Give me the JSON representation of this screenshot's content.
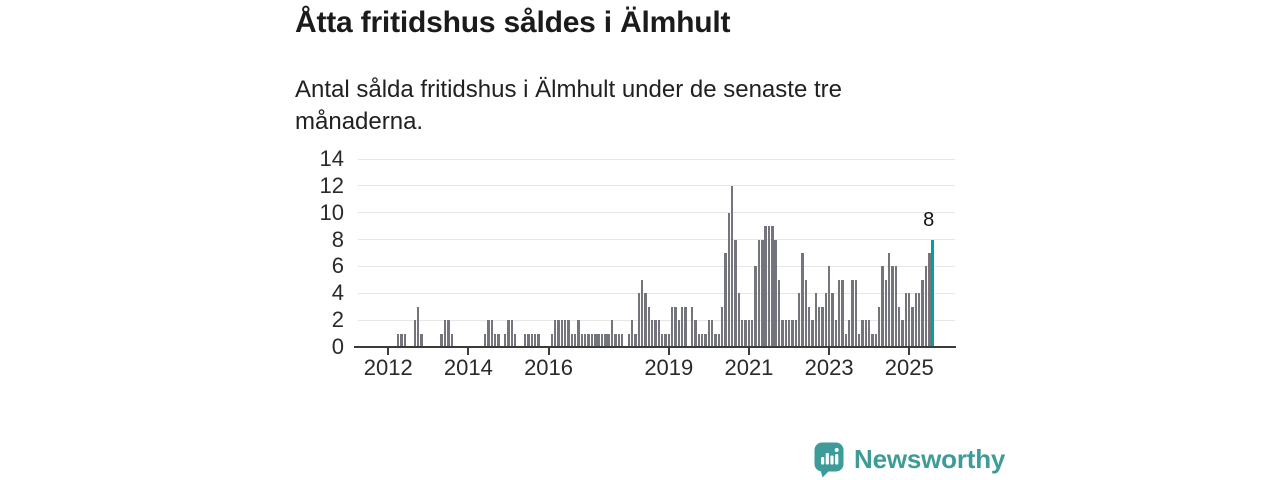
{
  "header": {
    "title": "Åtta fritidshus såldes i Älmhult",
    "subtitle": "Antal sålda fritidshus i Älmhult under de senaste tre månaderna."
  },
  "chart_data": {
    "type": "bar",
    "title": "Åtta fritidshus såldes i Älmhult",
    "xlabel": "",
    "ylabel": "",
    "start_month": "2011-07",
    "frequency": "monthly",
    "values": [
      0,
      0,
      0,
      0,
      0,
      0,
      0,
      0,
      0,
      1,
      1,
      1,
      0,
      0,
      2,
      3,
      1,
      0,
      0,
      0,
      0,
      0,
      1,
      2,
      2,
      1,
      0,
      0,
      0,
      0,
      0,
      0,
      0,
      0,
      0,
      1,
      2,
      2,
      1,
      1,
      0,
      1,
      2,
      2,
      1,
      0,
      0,
      1,
      1,
      1,
      1,
      1,
      0,
      0,
      0,
      1,
      2,
      2,
      2,
      2,
      2,
      1,
      1,
      2,
      1,
      1,
      1,
      1,
      1,
      1,
      1,
      1,
      1,
      2,
      1,
      1,
      1,
      0,
      1,
      2,
      1,
      4,
      5,
      4,
      3,
      2,
      2,
      2,
      1,
      1,
      1,
      3,
      3,
      2,
      3,
      3,
      0,
      3,
      2,
      1,
      1,
      1,
      2,
      2,
      1,
      1,
      3,
      7,
      10,
      12,
      8,
      4,
      2,
      2,
      2,
      2,
      6,
      8,
      8,
      9,
      9,
      9,
      8,
      5,
      2,
      2,
      2,
      2,
      2,
      4,
      7,
      5,
      3,
      2,
      4,
      3,
      3,
      4,
      6,
      4,
      2,
      5,
      5,
      1,
      2,
      5,
      5,
      1,
      2,
      2,
      2,
      1,
      1,
      3,
      6,
      5,
      7,
      6,
      6,
      3,
      2,
      4,
      4,
      3,
      4,
      4,
      5,
      6,
      7,
      8
    ],
    "highlight_last_value": 8,
    "highlight_label": "8",
    "y_ticks": [
      0,
      2,
      4,
      6,
      8,
      10,
      12,
      14
    ],
    "ylim": [
      0,
      14
    ],
    "x_tick_years": [
      "2012",
      "2014",
      "2016",
      "2019",
      "2021",
      "2023",
      "2025"
    ],
    "grid": "horizontal",
    "legend": "none",
    "colors": {
      "bar": "#74747c",
      "highlight": "#00a2a0",
      "axis": "#3b3b3b",
      "gridline": "#e7e7e7"
    }
  },
  "footer": {
    "brand": "Newsworthy",
    "brand_color": "#3e9c98"
  }
}
